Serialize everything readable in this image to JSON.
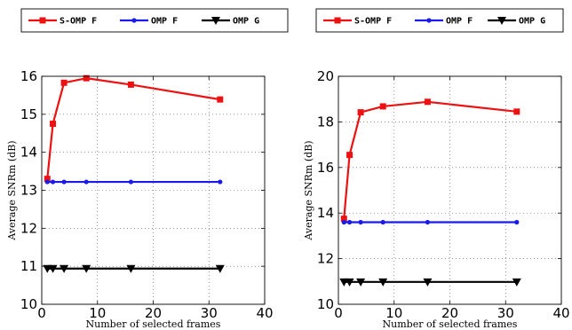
{
  "chart_data": [
    {
      "type": "line",
      "xlabel": "Number of selected frames",
      "ylabel": "Average SNRm (dB)",
      "xlim": [
        0,
        40
      ],
      "ylim": [
        10,
        16
      ],
      "xticks": [
        0,
        10,
        20,
        30,
        40
      ],
      "yticks": [
        10,
        11,
        12,
        13,
        14,
        15,
        16
      ],
      "grid": true,
      "legend_position": "top, horizontal",
      "x": [
        1,
        2,
        4,
        8,
        16,
        32
      ],
      "series": [
        {
          "name": "S-OMP F",
          "color": "#ee1111",
          "marker": "square",
          "values": [
            13.3,
            14.75,
            15.83,
            15.95,
            15.78,
            15.39
          ]
        },
        {
          "name": "OMP F",
          "color": "#1a1aee",
          "marker": "dot",
          "values": [
            13.22,
            13.22,
            13.22,
            13.22,
            13.22,
            13.22
          ]
        },
        {
          "name": "OMP G",
          "color": "#000000",
          "marker": "triangle-down",
          "values": [
            10.94,
            10.94,
            10.94,
            10.94,
            10.94,
            10.94
          ]
        }
      ]
    },
    {
      "type": "line",
      "xlabel": "Number of selected frames",
      "ylabel": "Average SNRm (dB)",
      "xlim": [
        0,
        40
      ],
      "ylim": [
        10,
        20
      ],
      "xticks": [
        0,
        10,
        20,
        30,
        40
      ],
      "yticks": [
        10,
        12,
        14,
        16,
        18,
        20
      ],
      "grid": true,
      "legend_position": "top, horizontal",
      "x": [
        1,
        2,
        4,
        8,
        16,
        32
      ],
      "series": [
        {
          "name": "S-OMP F",
          "color": "#ee1111",
          "marker": "square",
          "values": [
            13.75,
            16.55,
            18.42,
            18.68,
            18.88,
            18.45
          ]
        },
        {
          "name": "OMP F",
          "color": "#1a1aee",
          "marker": "dot",
          "values": [
            13.6,
            13.6,
            13.6,
            13.6,
            13.6,
            13.6
          ]
        },
        {
          "name": "OMP G",
          "color": "#000000",
          "marker": "triangle-down",
          "values": [
            10.98,
            10.98,
            10.98,
            10.98,
            10.98,
            10.98
          ]
        }
      ]
    }
  ]
}
